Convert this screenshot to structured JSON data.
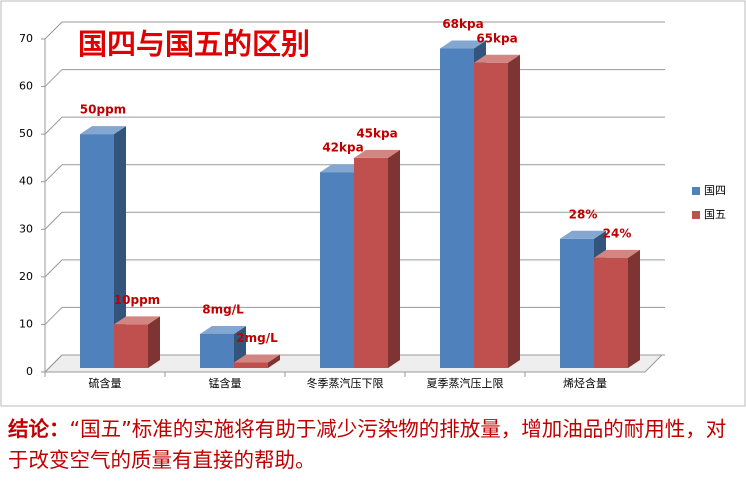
{
  "chart_data": {
    "type": "bar3d",
    "title": "国四与国五的区别",
    "categories": [
      "硫含量",
      "锰含量",
      "冬季蒸汽压下限",
      "夏季蒸汽压上限",
      "烯烃含量"
    ],
    "series": [
      {
        "name": "国四",
        "color": "#4f81bd",
        "values": [
          50,
          8,
          42,
          68,
          28
        ],
        "value_labels": [
          "50ppm",
          "8mg/L",
          "42kpa",
          "68kpa",
          "28%"
        ]
      },
      {
        "name": "国五",
        "color": "#c0504d",
        "values": [
          10,
          2,
          45,
          65,
          24
        ],
        "value_labels": [
          "10ppm",
          "2mg/L",
          "45kpa",
          "65kpa",
          "24%"
        ]
      }
    ],
    "ylim": [
      0,
      70
    ],
    "yticks": [
      0,
      10,
      20,
      30,
      40,
      50,
      60,
      70
    ],
    "grid": true,
    "legend": "right"
  },
  "conclusion": {
    "label": "结论：",
    "text": "“国五”标准的实施将有助于减少污染物的排放量，增加油品的耐用性，对于改变空气的质量有直接的帮助。"
  }
}
